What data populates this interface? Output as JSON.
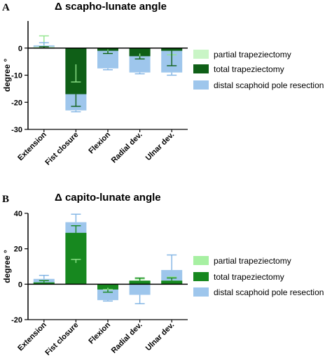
{
  "chart_data": [
    {
      "type": "bar",
      "panel": "A",
      "title": "Δ scapho-lunate angle",
      "ylabel": "degree °",
      "ylim": [
        -30,
        10
      ],
      "yticks": [
        -30,
        -20,
        -10,
        0
      ],
      "categories": [
        "Extension",
        "Fist closure",
        "Flexion",
        "Radial dev.",
        "Ulnar dev."
      ],
      "series": [
        {
          "name": "partial trapeziectomy",
          "color": "#c9f5c6",
          "values": [
            0.5,
            -6,
            -0.5,
            -2,
            -1
          ],
          "err": [
            4.0,
            6.5,
            1.5,
            2.0,
            1.5
          ]
        },
        {
          "name": "total trapeziectomy",
          "color": "#0f5f17",
          "values": [
            0,
            -17,
            -1,
            -3,
            -1
          ],
          "err": [
            0.5,
            4.5,
            1.0,
            1.0,
            5.5
          ]
        },
        {
          "name": "distal scaphoid pole resection",
          "color": "#9ec6ec",
          "values": [
            1,
            -23,
            -7.5,
            -9,
            -9
          ],
          "err": [
            1.0,
            0.5,
            0.5,
            0.5,
            1.0
          ]
        }
      ],
      "legend_position": "right"
    },
    {
      "type": "bar",
      "panel": "B",
      "title": "Δ capito-lunate angle",
      "ylabel": "degree °",
      "ylim": [
        -20,
        40
      ],
      "yticks": [
        -20,
        0,
        20,
        40
      ],
      "categories": [
        "Extension",
        "Fist closure",
        "Flexion",
        "Radial dev.",
        "Ulnar dev."
      ],
      "series": [
        {
          "name": "partial trapeziectomy",
          "color": "#a7f0a2",
          "values": [
            1,
            12,
            -2,
            2,
            2
          ],
          "err": [
            1.0,
            2.0,
            1.0,
            1.0,
            2.0
          ]
        },
        {
          "name": "total trapeziectomy",
          "color": "#17881f",
          "values": [
            1,
            29,
            -3,
            2,
            2
          ],
          "err": [
            1.0,
            4.0,
            1.5,
            1.5,
            1.5
          ]
        },
        {
          "name": "distal scaphoid pole resection",
          "color": "#9ec6ec",
          "values": [
            3,
            35,
            -9,
            -6,
            8
          ],
          "err": [
            2.0,
            4.5,
            0.5,
            5.0,
            8.5
          ]
        }
      ],
      "legend_position": "right"
    }
  ]
}
